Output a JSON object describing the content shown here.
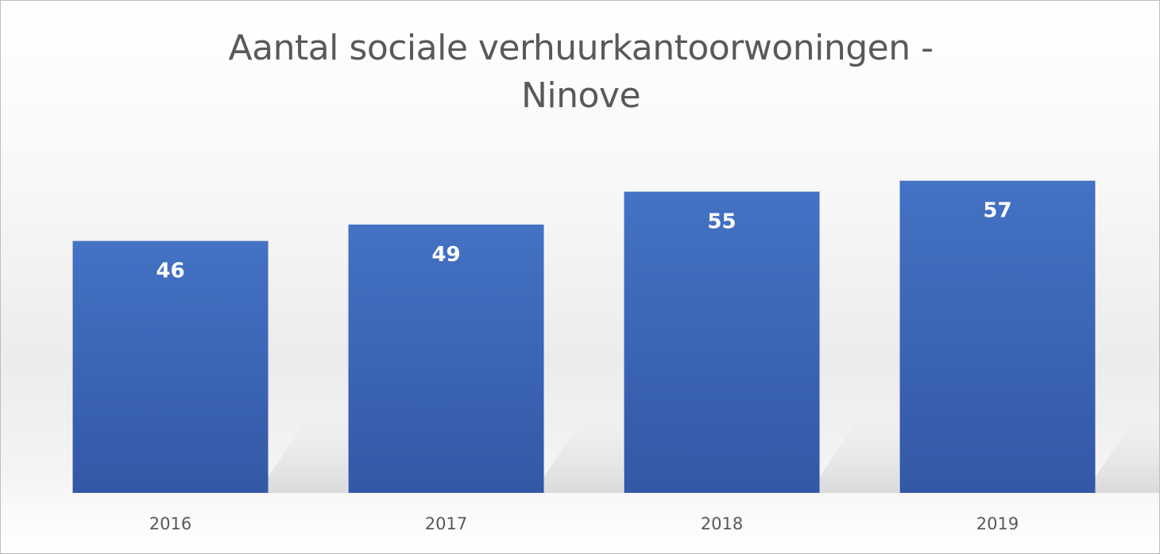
{
  "chart_data": {
    "type": "bar",
    "title_lines": [
      "Aantal sociale verhuurkantoorwoningen -",
      "Ninove"
    ],
    "categories": [
      "2016",
      "2017",
      "2018",
      "2019"
    ],
    "values": [
      46,
      49,
      55,
      57
    ],
    "xlabel": "",
    "ylabel": "",
    "ylim": [
      0,
      64
    ],
    "grid": false,
    "legend": "none",
    "data_labels": "inside-end",
    "bar_color": "#4472c4"
  }
}
